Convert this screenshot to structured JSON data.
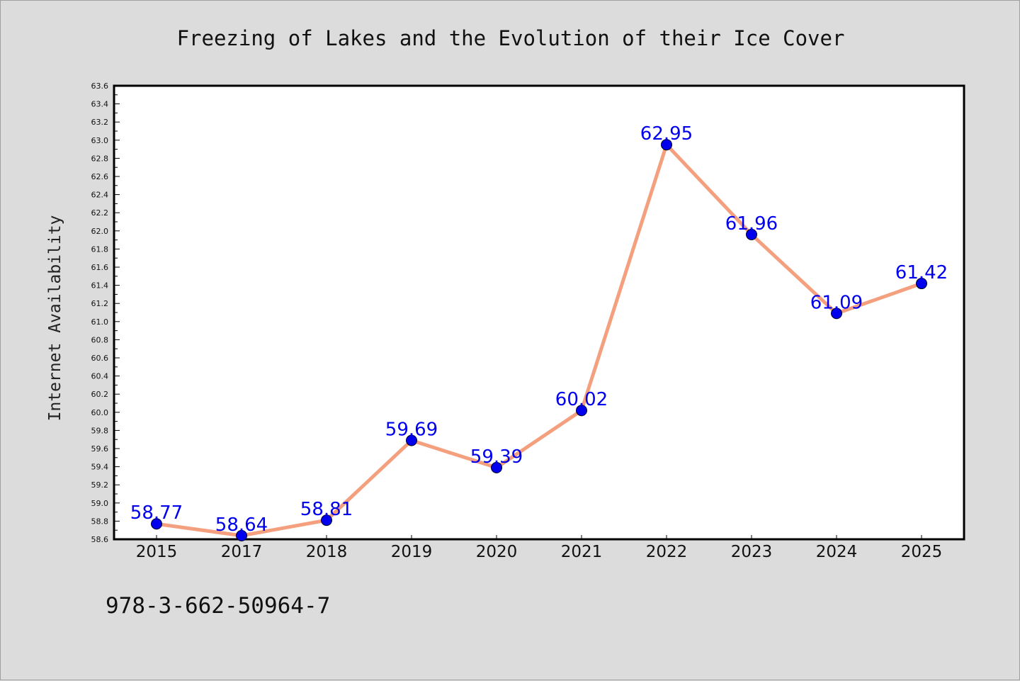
{
  "chart_data": {
    "type": "line",
    "title": "Freezing of Lakes and the Evolution of their Ice Cover",
    "ylabel": "Internet Availability",
    "xlabel": "",
    "x": [
      "2015",
      "2017",
      "2018",
      "2019",
      "2020",
      "2021",
      "2022",
      "2023",
      "2024",
      "2025"
    ],
    "series": [
      {
        "values": [
          58.77,
          58.64,
          58.81,
          59.69,
          59.39,
          60.02,
          62.95,
          61.96,
          61.09,
          61.42
        ],
        "labels": [
          "58.77",
          "58.64",
          "58.81",
          "59.69",
          "59.39",
          "60.02",
          "62.95",
          "61.96",
          "61.09",
          "61.42"
        ]
      }
    ],
    "ylim": [
      58.6,
      63.6
    ],
    "yticks": [
      "58.6",
      "58.8",
      "59.0",
      "59.2",
      "59.4",
      "59.6",
      "59.8",
      "60.0",
      "60.2",
      "60.4",
      "60.6",
      "60.8",
      "61.0",
      "61.2",
      "61.4",
      "61.6",
      "61.8",
      "62.0",
      "62.2",
      "62.4",
      "62.6",
      "62.8",
      "63.0",
      "63.2",
      "63.4",
      "63.6"
    ],
    "grid": false,
    "line_color": "#f4a07e",
    "marker_color": "#0000ee",
    "label_color": "#0000ee",
    "plot_background": "#ffffff",
    "figure_background": "#dcdcdc"
  },
  "footer": {
    "isbn": "978-3-662-50964-7"
  }
}
